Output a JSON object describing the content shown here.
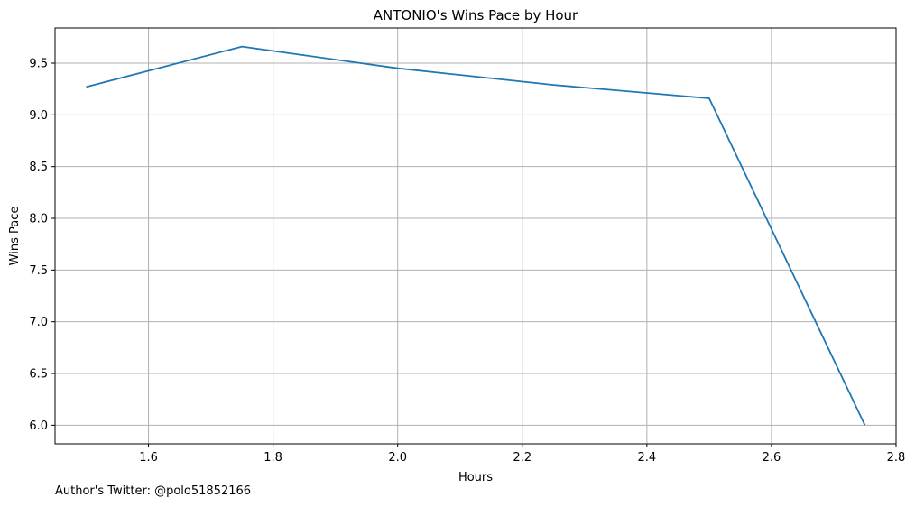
{
  "chart_data": {
    "type": "line",
    "title": "ANTONIO's Wins Pace by Hour",
    "xlabel": "Hours",
    "ylabel": "Wins Pace",
    "xlim": [
      1.45,
      2.8
    ],
    "ylim": [
      5.82,
      9.84
    ],
    "x_ticks": [
      1.6,
      1.8,
      2.0,
      2.2,
      2.4,
      2.6,
      2.8
    ],
    "y_ticks": [
      6.0,
      6.5,
      7.0,
      7.5,
      8.0,
      8.5,
      9.0,
      9.5
    ],
    "x_tick_labels": [
      "1.6",
      "1.8",
      "2.0",
      "2.2",
      "2.4",
      "2.6",
      "2.8"
    ],
    "y_tick_labels": [
      "6.0",
      "6.5",
      "7.0",
      "7.5",
      "8.0",
      "8.5",
      "9.0",
      "9.5"
    ],
    "grid": true,
    "line_color": "#1f77b4",
    "series": [
      {
        "x": [
          1.5,
          1.75,
          2.0,
          2.25,
          2.5,
          2.75
        ],
        "y": [
          9.27,
          9.66,
          9.45,
          9.29,
          9.16,
          6.0
        ]
      }
    ]
  },
  "footer": {
    "text": "Author's Twitter: @polo51852166"
  }
}
